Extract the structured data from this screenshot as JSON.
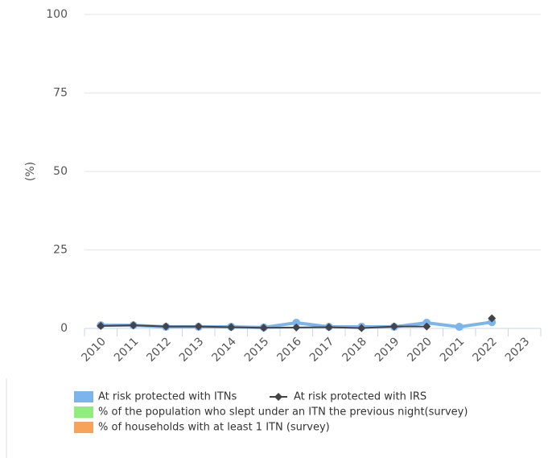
{
  "chart_data": {
    "type": "line",
    "categories": [
      "2010",
      "2011",
      "2012",
      "2013",
      "2014",
      "2015",
      "2016",
      "2017",
      "2018",
      "2019",
      "2020",
      "2021",
      "2022",
      "2023"
    ],
    "y_label": "(%)",
    "ylim": [
      0,
      100
    ],
    "yticks": [
      0,
      25,
      50,
      75,
      100
    ],
    "grid": true,
    "series": [
      {
        "name": "At risk protected with ITNs",
        "color": "#7cb5ec",
        "marker": "circle",
        "values": [
          1,
          1,
          0.5,
          0.5,
          0.5,
          0.3,
          1.8,
          0.5,
          0.5,
          0.5,
          1.8,
          0.5,
          2,
          null
        ]
      },
      {
        "name": "At risk protected with IRS",
        "color": "#434348",
        "marker": "diamond",
        "values": [
          0.8,
          1,
          0.6,
          0.6,
          0.4,
          0.2,
          0.3,
          0.4,
          0.1,
          0.6,
          0.6,
          null,
          3.2,
          null
        ]
      },
      {
        "name": "% of the population who slept under an ITN the previous night(survey)",
        "color": "#90ed7d",
        "marker": "circle",
        "values": [
          null,
          null,
          null,
          null,
          null,
          null,
          null,
          null,
          null,
          null,
          null,
          null,
          null,
          null
        ]
      },
      {
        "name": "% of households with at least 1 ITN (survey)",
        "color": "#f7a35c",
        "marker": "circle",
        "values": [
          null,
          null,
          null,
          null,
          null,
          null,
          null,
          null,
          null,
          null,
          null,
          null,
          null,
          null
        ]
      }
    ]
  }
}
